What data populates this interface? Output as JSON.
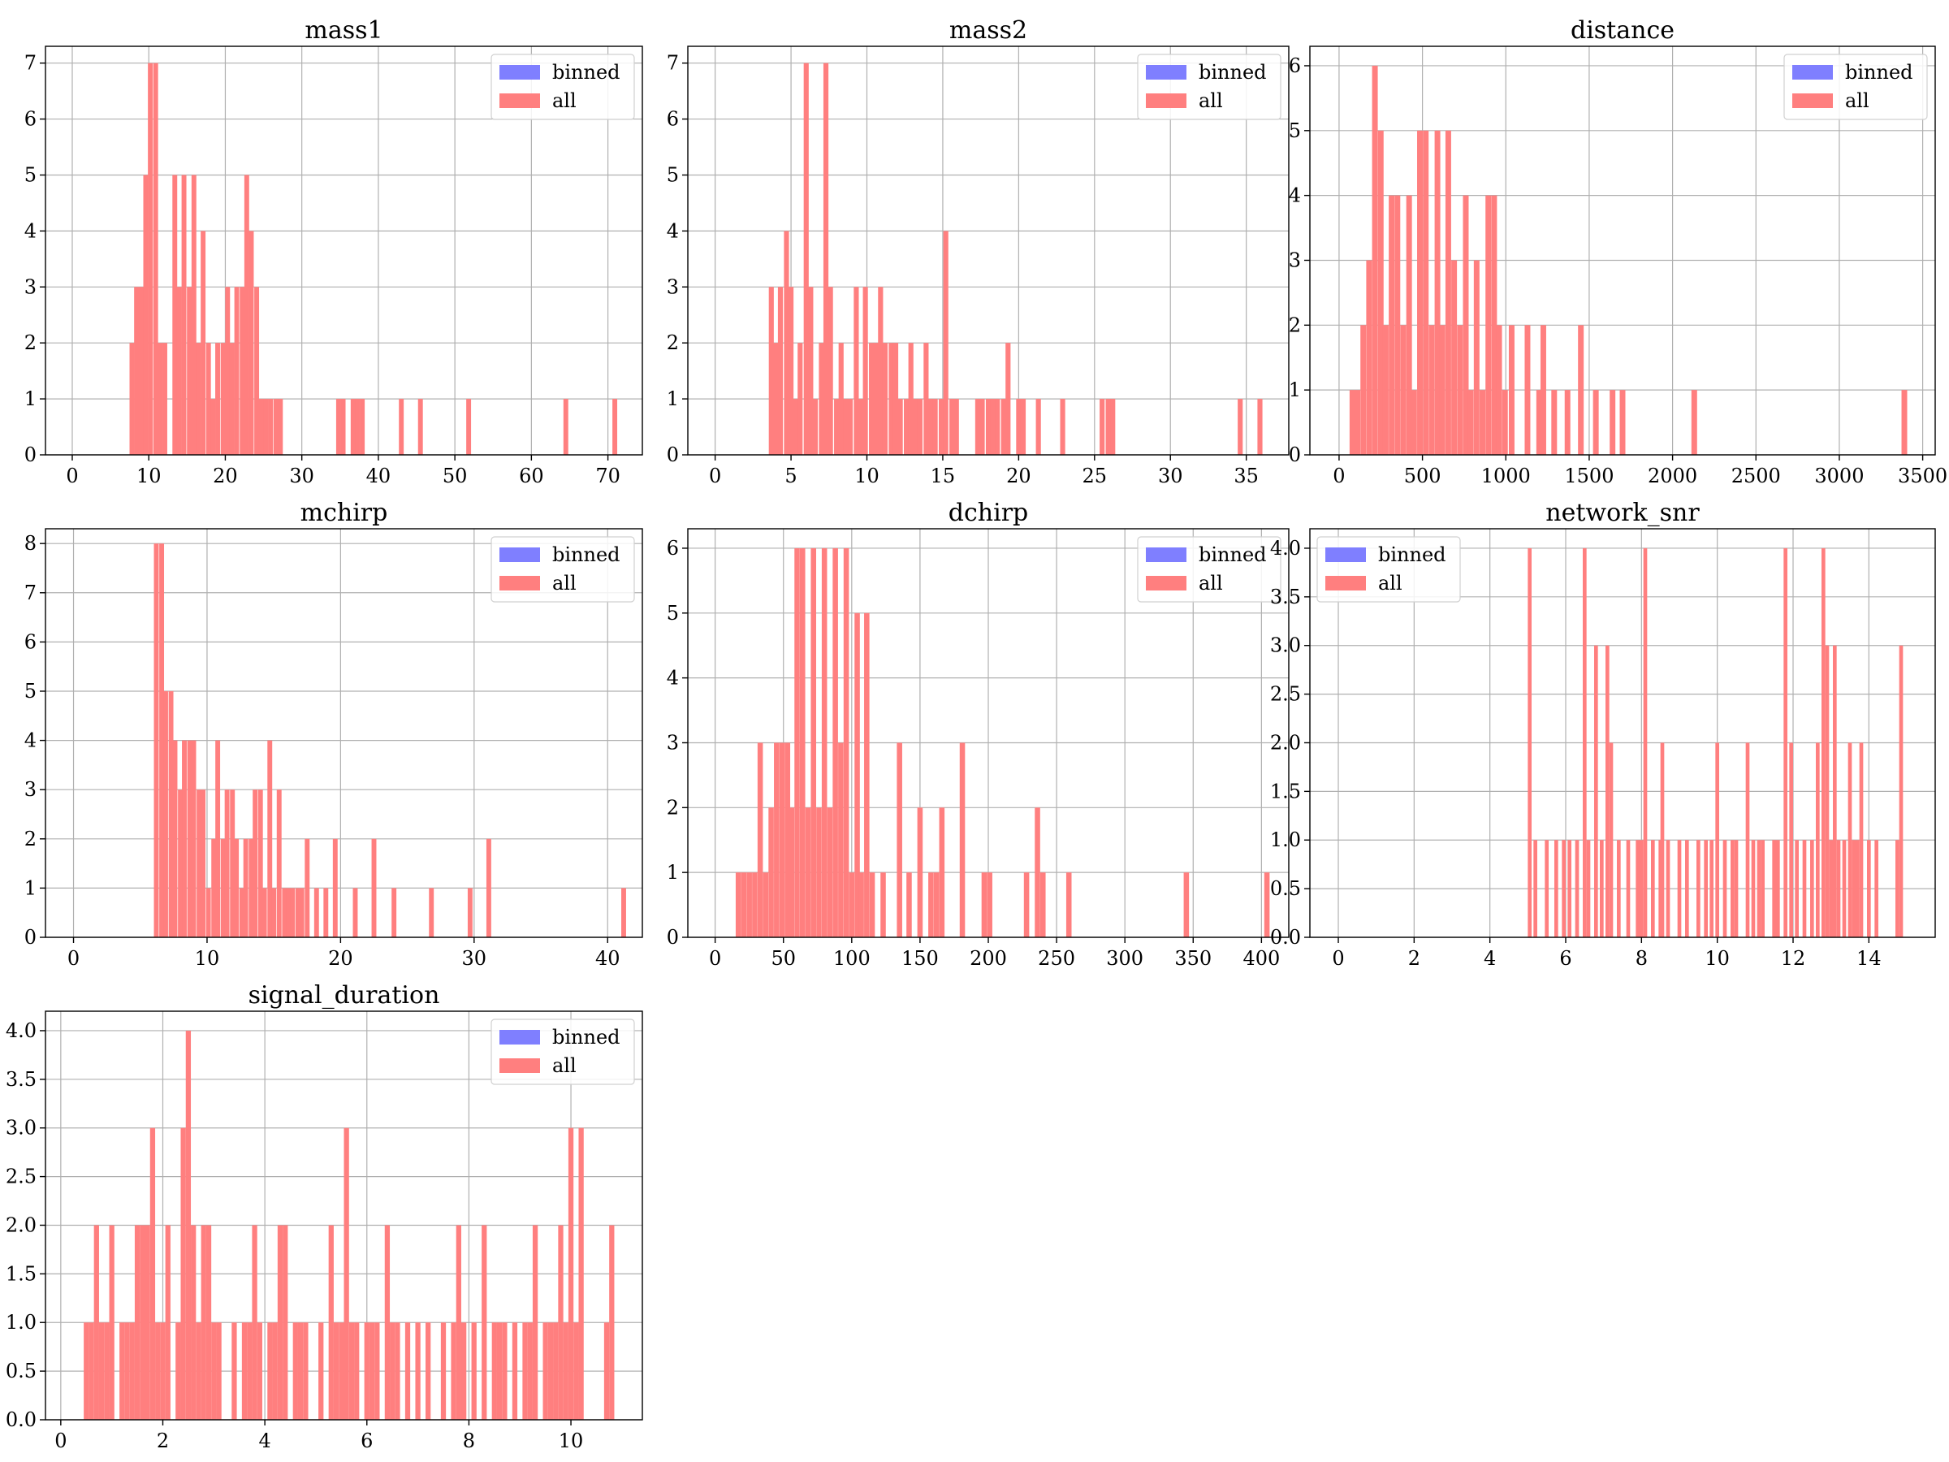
{
  "figure": {
    "legend_labels": [
      "binned",
      "all"
    ],
    "colors": {
      "binned": "#7f7fff",
      "all": "#ff7f7f",
      "grid": "#b0b0b0"
    }
  },
  "chart_data": [
    {
      "type": "bar",
      "title": "mass1",
      "xlim": [
        -3.5,
        74.5
      ],
      "ylim": [
        0,
        7.3
      ],
      "xticks": [
        0,
        10,
        20,
        30,
        40,
        50,
        60,
        70
      ],
      "yticks": [
        0,
        1,
        2,
        3,
        4,
        5,
        6,
        7
      ],
      "ytick_labels": [
        "0",
        "1",
        "2",
        "3",
        "4",
        "5",
        "6",
        "7"
      ],
      "legend_position": "upper right",
      "series": [
        {
          "name": "binned",
          "x": [],
          "counts": [],
          "bin_width": 0.63
        },
        {
          "name": "all",
          "bin_width": 0.63,
          "x": [
            7.8,
            8.4,
            9.0,
            9.6,
            10.2,
            10.9,
            11.5,
            12.1,
            13.4,
            14.0,
            14.6,
            15.3,
            15.9,
            16.5,
            17.1,
            17.8,
            18.4,
            19.0,
            19.7,
            20.3,
            20.9,
            21.5,
            22.2,
            22.8,
            23.4,
            24.1,
            24.7,
            25.3,
            25.9,
            26.6,
            27.2,
            34.8,
            35.4,
            36.7,
            37.3,
            37.9,
            43.0,
            45.5,
            51.8,
            64.5,
            70.9
          ],
          "counts": [
            2,
            3,
            3,
            5,
            7,
            7,
            2,
            2,
            5,
            3,
            5,
            3,
            5,
            2,
            4,
            2,
            1,
            2,
            2,
            3,
            2,
            3,
            3,
            5,
            4,
            3,
            1,
            1,
            1,
            1,
            1,
            1,
            1,
            1,
            1,
            1,
            1,
            1,
            1,
            1,
            1
          ]
        }
      ]
    },
    {
      "type": "bar",
      "title": "mass2",
      "xlim": [
        -1.8,
        37.8
      ],
      "ylim": [
        0,
        7.3
      ],
      "xticks": [
        0,
        5,
        10,
        15,
        20,
        25,
        30,
        35
      ],
      "yticks": [
        0,
        1,
        2,
        3,
        4,
        5,
        6,
        7
      ],
      "ytick_labels": [
        "0",
        "1",
        "2",
        "3",
        "4",
        "5",
        "6",
        "7"
      ],
      "legend_position": "upper right",
      "series": [
        {
          "name": "binned",
          "x": [],
          "counts": [],
          "bin_width": 0.33
        },
        {
          "name": "all",
          "bin_width": 0.33,
          "x": [
            3.7,
            4.0,
            4.3,
            4.7,
            5.0,
            5.3,
            5.6,
            6.0,
            6.3,
            6.6,
            7.0,
            7.3,
            7.6,
            8.0,
            8.3,
            8.6,
            8.9,
            9.3,
            9.6,
            9.9,
            10.3,
            10.6,
            10.9,
            11.2,
            11.6,
            11.9,
            12.2,
            12.6,
            12.9,
            13.2,
            13.5,
            13.9,
            14.2,
            14.5,
            14.9,
            15.2,
            15.6,
            15.9,
            17.3,
            17.6,
            18.0,
            18.3,
            18.6,
            19.0,
            19.3,
            20.0,
            20.3,
            21.3,
            22.9,
            25.5,
            25.9,
            26.2,
            34.6,
            35.9
          ],
          "counts": [
            3,
            2,
            3,
            4,
            3,
            1,
            2,
            7,
            3,
            1,
            2,
            7,
            3,
            1,
            2,
            1,
            1,
            3,
            1,
            3,
            2,
            2,
            3,
            2,
            2,
            2,
            1,
            1,
            2,
            1,
            1,
            2,
            1,
            1,
            1,
            4,
            1,
            1,
            1,
            1,
            1,
            1,
            1,
            1,
            2,
            1,
            1,
            1,
            1,
            1,
            1,
            1,
            1,
            1
          ]
        }
      ]
    },
    {
      "type": "bar",
      "title": "distance",
      "xlim": [
        -175,
        3575
      ],
      "ylim": [
        0,
        6.3
      ],
      "xticks": [
        0,
        500,
        1000,
        1500,
        2000,
        2500,
        3000,
        3500
      ],
      "yticks": [
        0,
        1,
        2,
        3,
        4,
        5,
        6
      ],
      "ytick_labels": [
        "0",
        "1",
        "2",
        "3",
        "4",
        "5",
        "6"
      ],
      "legend_position": "upper right",
      "series": [
        {
          "name": "binned",
          "x": [],
          "counts": [],
          "bin_width": 34
        },
        {
          "name": "all",
          "bin_width": 34,
          "x": [
            80,
            110,
            145,
            180,
            215,
            250,
            280,
            315,
            350,
            385,
            420,
            450,
            485,
            520,
            555,
            590,
            620,
            655,
            690,
            725,
            760,
            790,
            825,
            860,
            895,
            930,
            960,
            995,
            1035,
            1130,
            1200,
            1225,
            1290,
            1370,
            1450,
            1540,
            1640,
            1700,
            2130,
            3390
          ],
          "counts": [
            1,
            1,
            2,
            3,
            6,
            5,
            2,
            4,
            4,
            2,
            4,
            1,
            5,
            5,
            2,
            5,
            2,
            5,
            3,
            2,
            4,
            1,
            3,
            1,
            4,
            4,
            2,
            1,
            2,
            2,
            1,
            2,
            1,
            1,
            2,
            1,
            1,
            1,
            1,
            1
          ]
        }
      ]
    },
    {
      "type": "bar",
      "title": "mchirp",
      "xlim": [
        -2.1,
        42.6
      ],
      "ylim": [
        0,
        8.3
      ],
      "xticks": [
        0,
        10,
        20,
        30,
        40
      ],
      "yticks": [
        0,
        1,
        2,
        3,
        4,
        5,
        6,
        7,
        8
      ],
      "ytick_labels": [
        "0",
        "1",
        "2",
        "3",
        "4",
        "5",
        "6",
        "7",
        "8"
      ],
      "legend_position": "upper right",
      "series": [
        {
          "name": "binned",
          "x": [],
          "counts": [],
          "bin_width": 0.36
        },
        {
          "name": "all",
          "bin_width": 0.36,
          "x": [
            6.2,
            6.6,
            6.9,
            7.3,
            7.6,
            8.0,
            8.3,
            8.7,
            9.0,
            9.4,
            9.7,
            10.1,
            10.5,
            10.8,
            11.2,
            11.5,
            11.9,
            12.2,
            12.6,
            12.9,
            13.3,
            13.6,
            14.0,
            14.3,
            14.7,
            15.0,
            15.4,
            15.8,
            16.1,
            16.4,
            16.8,
            17.1,
            17.5,
            18.2,
            18.9,
            19.6,
            21.1,
            22.5,
            24.0,
            26.8,
            29.7,
            31.1,
            41.2
          ],
          "counts": [
            8,
            8,
            5,
            5,
            4,
            3,
            4,
            4,
            4,
            3,
            3,
            1,
            2,
            4,
            2,
            3,
            3,
            2,
            1,
            2,
            2,
            3,
            3,
            1,
            4,
            1,
            3,
            1,
            1,
            1,
            1,
            1,
            2,
            1,
            1,
            2,
            1,
            2,
            1,
            1,
            1,
            2,
            1
          ]
        }
      ]
    },
    {
      "type": "bar",
      "title": "dchirp",
      "xlim": [
        -20,
        420
      ],
      "ylim": [
        0,
        6.3
      ],
      "xticks": [
        0,
        50,
        100,
        150,
        200,
        250,
        300,
        350,
        400
      ],
      "yticks": [
        0,
        1,
        2,
        3,
        4,
        5,
        6
      ],
      "ytick_labels": [
        "0",
        "1",
        "2",
        "3",
        "4",
        "5",
        "6"
      ],
      "legend_position": "upper right",
      "series": [
        {
          "name": "binned",
          "x": [],
          "counts": [],
          "bin_width": 3.9
        },
        {
          "name": "all",
          "bin_width": 3.9,
          "x": [
            17,
            21,
            25,
            29,
            33,
            37,
            41,
            45,
            49,
            53,
            56,
            60,
            64,
            68,
            72,
            76,
            80,
            84,
            88,
            92,
            96,
            100,
            104,
            107,
            111,
            115,
            123,
            135,
            142,
            150,
            158,
            162,
            166,
            181,
            197,
            201,
            228,
            236,
            240,
            259,
            345,
            404
          ],
          "counts": [
            1,
            1,
            1,
            1,
            3,
            1,
            2,
            3,
            3,
            3,
            2,
            6,
            6,
            2,
            6,
            2,
            6,
            2,
            6,
            3,
            6,
            1,
            5,
            1,
            5,
            1,
            1,
            3,
            1,
            2,
            1,
            1,
            2,
            3,
            1,
            1,
            1,
            2,
            1,
            1,
            1,
            1
          ]
        }
      ]
    },
    {
      "type": "bar",
      "title": "network_snr",
      "xlim": [
        -0.75,
        15.75
      ],
      "ylim": [
        0,
        4.2
      ],
      "xticks": [
        0,
        2,
        4,
        6,
        8,
        10,
        12,
        14
      ],
      "yticks": [
        0,
        0.5,
        1.0,
        1.5,
        2.0,
        2.5,
        3.0,
        3.5,
        4.0
      ],
      "ytick_labels": [
        "0.0",
        "0.5",
        "1.0",
        "1.5",
        "2.0",
        "2.5",
        "3.0",
        "3.5",
        "4.0"
      ],
      "legend_position": "upper left",
      "series": [
        {
          "name": "binned",
          "x": [],
          "counts": [],
          "bin_width": 0.1
        },
        {
          "name": "all",
          "bin_width": 0.1,
          "x": [
            5.05,
            5.2,
            5.5,
            5.75,
            5.95,
            6.1,
            6.3,
            6.5,
            6.6,
            6.8,
            6.95,
            7.1,
            7.2,
            7.4,
            7.65,
            7.9,
            8.0,
            8.1,
            8.3,
            8.5,
            8.55,
            8.7,
            9.0,
            9.2,
            9.5,
            9.7,
            9.85,
            10.0,
            10.2,
            10.4,
            10.5,
            10.8,
            10.95,
            11.1,
            11.2,
            11.5,
            11.6,
            11.8,
            11.95,
            12.1,
            12.3,
            12.5,
            12.65,
            12.8,
            12.9,
            13.0,
            13.1,
            13.2,
            13.35,
            13.5,
            13.6,
            13.7,
            13.8,
            14.0,
            14.2,
            14.75,
            14.85
          ],
          "counts": [
            4,
            1,
            1,
            1,
            1,
            1,
            1,
            4,
            1,
            3,
            1,
            3,
            2,
            1,
            1,
            1,
            1,
            4,
            1,
            1,
            2,
            1,
            1,
            1,
            1,
            1,
            1,
            2,
            1,
            1,
            1,
            2,
            1,
            1,
            1,
            1,
            1,
            4,
            2,
            1,
            1,
            1,
            2,
            4,
            3,
            1,
            3,
            1,
            1,
            2,
            1,
            1,
            2,
            1,
            1,
            1,
            3
          ]
        }
      ]
    },
    {
      "type": "bar",
      "title": "signal_duration",
      "xlim": [
        -0.3,
        11.4
      ],
      "ylim": [
        0,
        4.2
      ],
      "xticks": [
        0,
        2,
        4,
        6,
        8,
        10
      ],
      "yticks": [
        0,
        0.5,
        1.0,
        1.5,
        2.0,
        2.5,
        3.0,
        3.5,
        4.0
      ],
      "ytick_labels": [
        "0.0",
        "0.5",
        "1.0",
        "1.5",
        "2.0",
        "2.5",
        "3.0",
        "3.5",
        "4.0"
      ],
      "legend_position": "upper right",
      "series": [
        {
          "name": "binned",
          "x": [],
          "counts": [],
          "bin_width": 0.1
        },
        {
          "name": "all",
          "bin_width": 0.1,
          "x": [
            0.5,
            0.6,
            0.7,
            0.8,
            0.9,
            1.0,
            1.2,
            1.3,
            1.4,
            1.5,
            1.6,
            1.7,
            1.8,
            1.9,
            2.0,
            2.1,
            2.3,
            2.4,
            2.5,
            2.6,
            2.7,
            2.8,
            2.9,
            3.0,
            3.1,
            3.4,
            3.6,
            3.7,
            3.8,
            3.9,
            4.1,
            4.2,
            4.3,
            4.4,
            4.6,
            4.7,
            4.8,
            5.1,
            5.3,
            5.4,
            5.5,
            5.6,
            5.7,
            5.8,
            6.0,
            6.1,
            6.2,
            6.4,
            6.5,
            6.6,
            6.8,
            7.0,
            7.2,
            7.5,
            7.7,
            7.8,
            7.9,
            8.1,
            8.3,
            8.5,
            8.6,
            8.7,
            8.9,
            9.1,
            9.2,
            9.3,
            9.5,
            9.6,
            9.7,
            9.8,
            9.9,
            10.0,
            10.1,
            10.2,
            10.7,
            10.8
          ],
          "counts": [
            1,
            1,
            2,
            1,
            1,
            2,
            1,
            1,
            1,
            2,
            2,
            2,
            3,
            1,
            1,
            2,
            1,
            3,
            4,
            2,
            1,
            2,
            2,
            1,
            1,
            1,
            1,
            1,
            2,
            1,
            1,
            1,
            2,
            2,
            1,
            1,
            1,
            1,
            2,
            1,
            1,
            3,
            1,
            1,
            1,
            1,
            1,
            2,
            1,
            1,
            1,
            1,
            1,
            1,
            1,
            2,
            1,
            1,
            2,
            1,
            1,
            1,
            1,
            1,
            1,
            2,
            1,
            1,
            1,
            2,
            1,
            3,
            1,
            3,
            1,
            2
          ]
        }
      ]
    }
  ]
}
